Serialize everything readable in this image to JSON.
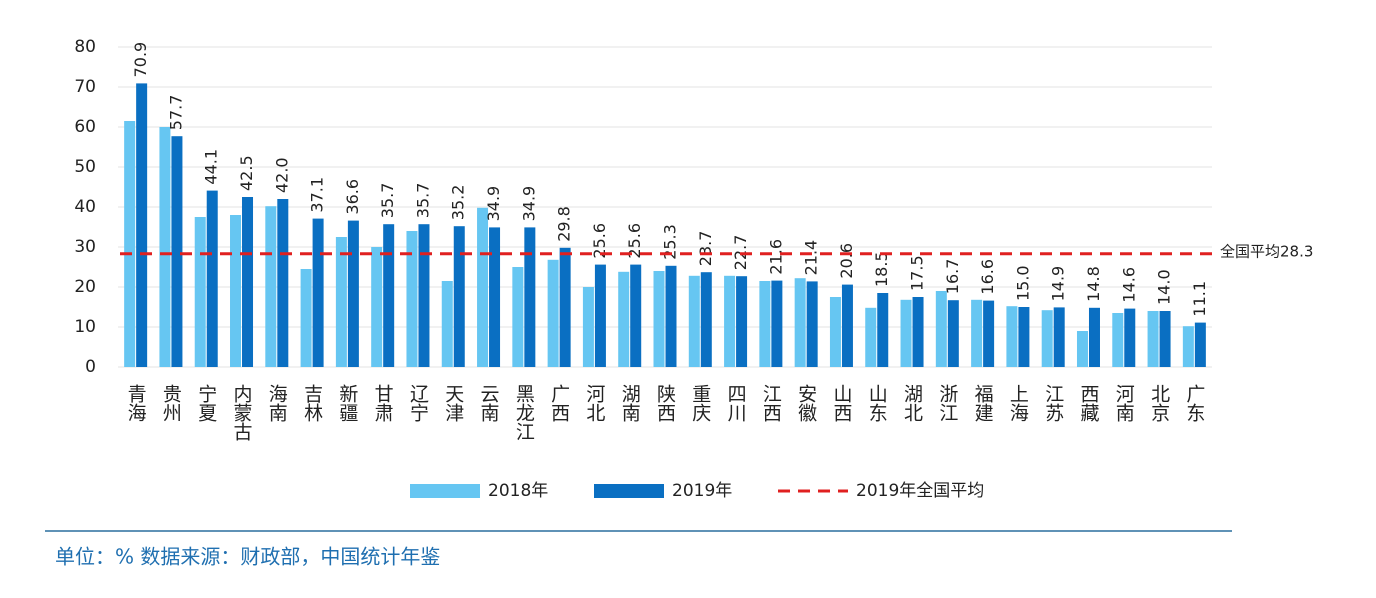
{
  "chart_data": {
    "type": "bar",
    "categories": [
      "青海",
      "贵州",
      "宁夏",
      "内蒙古",
      "海南",
      "吉林",
      "新疆",
      "甘肃",
      "辽宁",
      "天津",
      "云南",
      "黑龙江",
      "广西",
      "河北",
      "湖南",
      "陕西",
      "重庆",
      "四川",
      "江西",
      "安徽",
      "山西",
      "山东",
      "湖北",
      "浙江",
      "福建",
      "上海",
      "江苏",
      "西藏",
      "河南",
      "北京",
      "广东"
    ],
    "series": [
      {
        "name": "2018年",
        "color": "#66c6f2",
        "values": [
          61.5,
          60,
          37.5,
          38,
          40.2,
          24.5,
          32.5,
          30,
          34,
          21.5,
          39.8,
          25,
          26.8,
          20,
          23.8,
          24,
          22.8,
          22.8,
          21.5,
          22.2,
          17.5,
          14.8,
          16.8,
          19,
          16.8,
          15.2,
          14.2,
          9,
          13.5,
          14,
          10.2
        ]
      },
      {
        "name": "2019年",
        "color": "#0a6fc2",
        "values": [
          70.9,
          57.7,
          44.1,
          42.5,
          42.0,
          37.1,
          36.6,
          35.7,
          35.7,
          35.2,
          34.9,
          34.9,
          29.8,
          25.6,
          25.6,
          25.3,
          23.7,
          22.7,
          21.6,
          21.4,
          20.6,
          18.5,
          17.5,
          16.7,
          16.6,
          15.0,
          14.9,
          14.8,
          14.6,
          14.0,
          11.1
        ],
        "value_labels": [
          "70.9",
          "57.7",
          "44.1",
          "42.5",
          "42.0",
          "37.1",
          "36.6",
          "35.7",
          "35.7",
          "35.2",
          "34.9",
          "34.9",
          "29.8",
          "25.6",
          "25.6",
          "25.3",
          "23.7",
          "22.7",
          "21.6",
          "21.4",
          "20.6",
          "18.5",
          "17.5",
          "16.7",
          "16.6",
          "15.0",
          "14.9",
          "14.8",
          "14.6",
          "14.0",
          "11.1"
        ]
      }
    ],
    "average": {
      "name": "2019年全国平均",
      "value": 28.3,
      "label": "全国平均28.3",
      "color": "#e02020"
    },
    "ylim": [
      0,
      80
    ],
    "yticks": [
      0,
      10,
      20,
      30,
      40,
      50,
      60,
      70,
      80
    ],
    "grid": true,
    "footer": "单位：%    数据来源：财政部，中国统计年鉴"
  }
}
